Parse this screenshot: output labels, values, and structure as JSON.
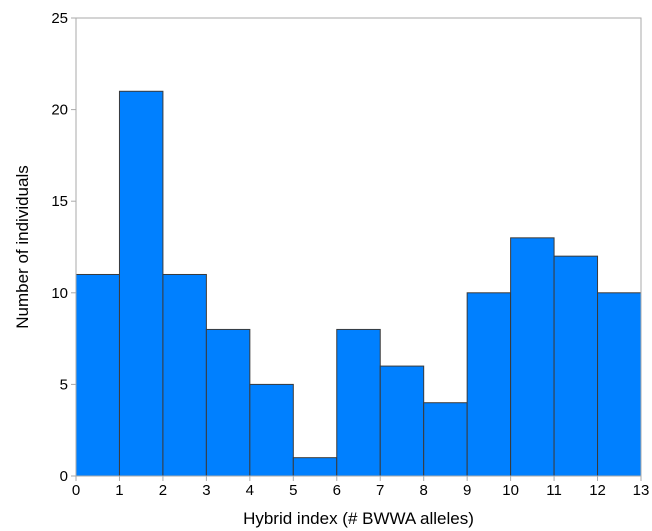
{
  "chart_data": {
    "type": "bar",
    "title": "",
    "xlabel": "Hybrid index (# BWWA alleles)",
    "ylabel": "Number of individuals",
    "bin_edges": [
      0,
      1,
      2,
      3,
      4,
      5,
      6,
      7,
      8,
      9,
      10,
      11,
      12,
      13
    ],
    "values": [
      11,
      21,
      11,
      8,
      5,
      1,
      8,
      6,
      4,
      10,
      13,
      12,
      10
    ],
    "xlim": [
      0,
      13
    ],
    "ylim": [
      0,
      25
    ],
    "x_ticks": [
      "0",
      "1",
      "2",
      "3",
      "4",
      "5",
      "6",
      "7",
      "8",
      "9",
      "10",
      "11",
      "12",
      "13"
    ],
    "y_ticks": [
      "0",
      "5",
      "10",
      "15",
      "20",
      "25"
    ],
    "grid": false,
    "bar_color": "#0080FF",
    "bar_edge_color": "#3A3A3A",
    "axis_color": "#AAAAAA"
  }
}
